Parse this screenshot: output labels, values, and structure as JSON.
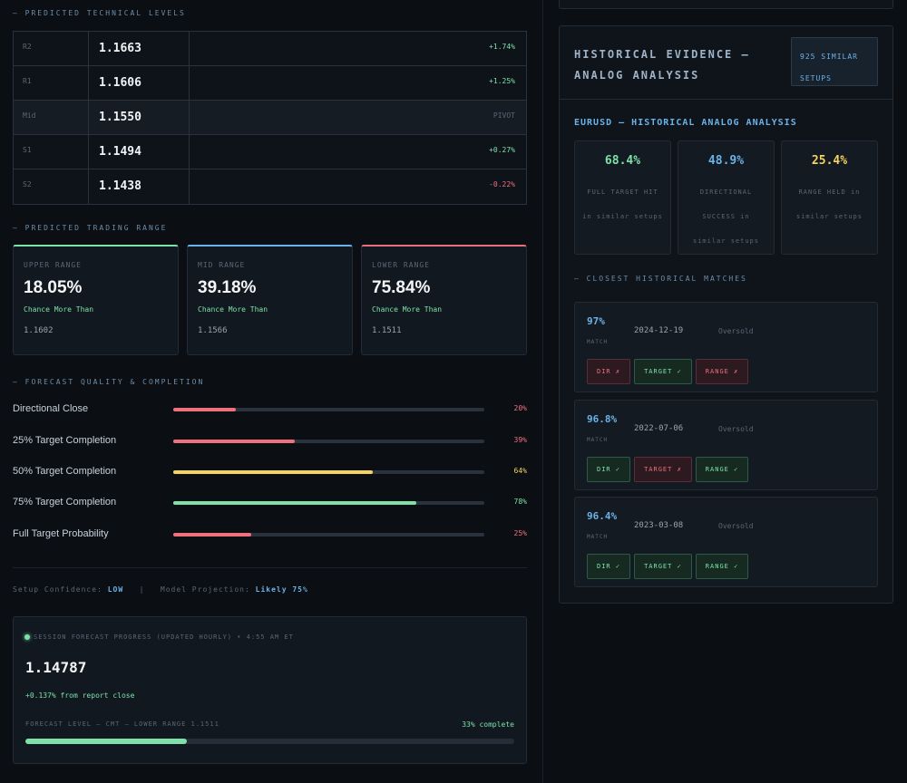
{
  "technical_levels": {
    "title": "— PREDICTED TECHNICAL LEVELS",
    "rows": [
      {
        "label": "R2",
        "value": "1.1663",
        "change": "+1.74%",
        "tone": "pos"
      },
      {
        "label": "R1",
        "value": "1.1606",
        "change": "+1.25%",
        "tone": "pos"
      },
      {
        "label": "Mid",
        "value": "1.1550",
        "change": "PIVOT",
        "tone": "neu"
      },
      {
        "label": "S1",
        "value": "1.1494",
        "change": "+0.27%",
        "tone": "pos"
      },
      {
        "label": "S2",
        "value": "1.1438",
        "change": "-0.22%",
        "tone": "neg"
      }
    ]
  },
  "trading_range": {
    "title": "— PREDICTED TRADING RANGE",
    "cards": [
      {
        "label": "UPPER RANGE",
        "pct": "18.05%",
        "sub": "Chance More Than",
        "level": "1.1602"
      },
      {
        "label": "MID RANGE",
        "pct": "39.18%",
        "sub": "Chance More Than",
        "level": "1.1566"
      },
      {
        "label": "LOWER RANGE",
        "pct": "75.84%",
        "sub": "Chance More Than",
        "level": "1.1511"
      }
    ]
  },
  "forecast_quality": {
    "title": "— FORECAST QUALITY & COMPLETION",
    "rows": [
      {
        "label": "Directional Close",
        "value": "20%",
        "fraction": 0.2,
        "color": "#f0707e"
      },
      {
        "label": "25% Target Completion",
        "value": "39%",
        "fraction": 0.39,
        "color": "#f0707e"
      },
      {
        "label": "50% Target Completion",
        "value": "64%",
        "fraction": 0.64,
        "color": "#f4d35e"
      },
      {
        "label": "75% Target Completion",
        "value": "78%",
        "fraction": 0.78,
        "color": "#7ee2a8"
      },
      {
        "label": "Full Target Probability",
        "value": "25%",
        "fraction": 0.25,
        "color": "#f0707e"
      }
    ]
  },
  "confidence": {
    "setup_label": "Setup Confidence:",
    "setup_value": "LOW",
    "separator": "|",
    "model_label": "Model Projection:",
    "model_value": "Likely 75%"
  },
  "session": {
    "header": "SESSION FORECAST PROGRESS (UPDATED HOURLY) • 4:55 AM ET",
    "price": "1.14787",
    "change": "+0.137% from report close",
    "level_text": "FORECAST LEVEL — CMT — LOWER RANGE 1.1511",
    "complete_text": "33% complete",
    "progress": 0.33
  },
  "historical": {
    "title": "HISTORICAL EVIDENCE — ANALOG ANALYSIS",
    "badge": "925 SIMILAR SETUPS",
    "analog_title": "EURUSD — HISTORICAL ANALOG ANALYSIS",
    "stats": [
      {
        "value": "68.4%",
        "desc": "FULL TARGET HIT in similar setups",
        "color": "#7ee2a8"
      },
      {
        "value": "48.9%",
        "desc": "DIRECTIONAL SUCCESS in similar setups",
        "color": "#6ab2e8"
      },
      {
        "value": "25.4%",
        "desc": "RANGE HELD in similar setups",
        "color": "#f4d35e"
      }
    ],
    "closest_title": "— CLOSEST HISTORICAL MATCHES",
    "match_label": "MATCH",
    "matches": [
      {
        "pct": "97%",
        "date": "2024-12-19",
        "condition": "Oversold",
        "tags": [
          {
            "text": "DIR ✗",
            "ok": false
          },
          {
            "text": "TARGET ✓",
            "ok": true
          },
          {
            "text": "RANGE ✗",
            "ok": false
          }
        ]
      },
      {
        "pct": "96.8%",
        "date": "2022-07-06",
        "condition": "Oversold",
        "tags": [
          {
            "text": "DIR ✓",
            "ok": true
          },
          {
            "text": "TARGET ✗",
            "ok": false
          },
          {
            "text": "RANGE ✓",
            "ok": true
          }
        ]
      },
      {
        "pct": "96.4%",
        "date": "2023-03-08",
        "condition": "Oversold",
        "tags": [
          {
            "text": "DIR ✓",
            "ok": true
          },
          {
            "text": "TARGET ✓",
            "ok": true
          },
          {
            "text": "RANGE ✓",
            "ok": true
          }
        ]
      }
    ]
  }
}
